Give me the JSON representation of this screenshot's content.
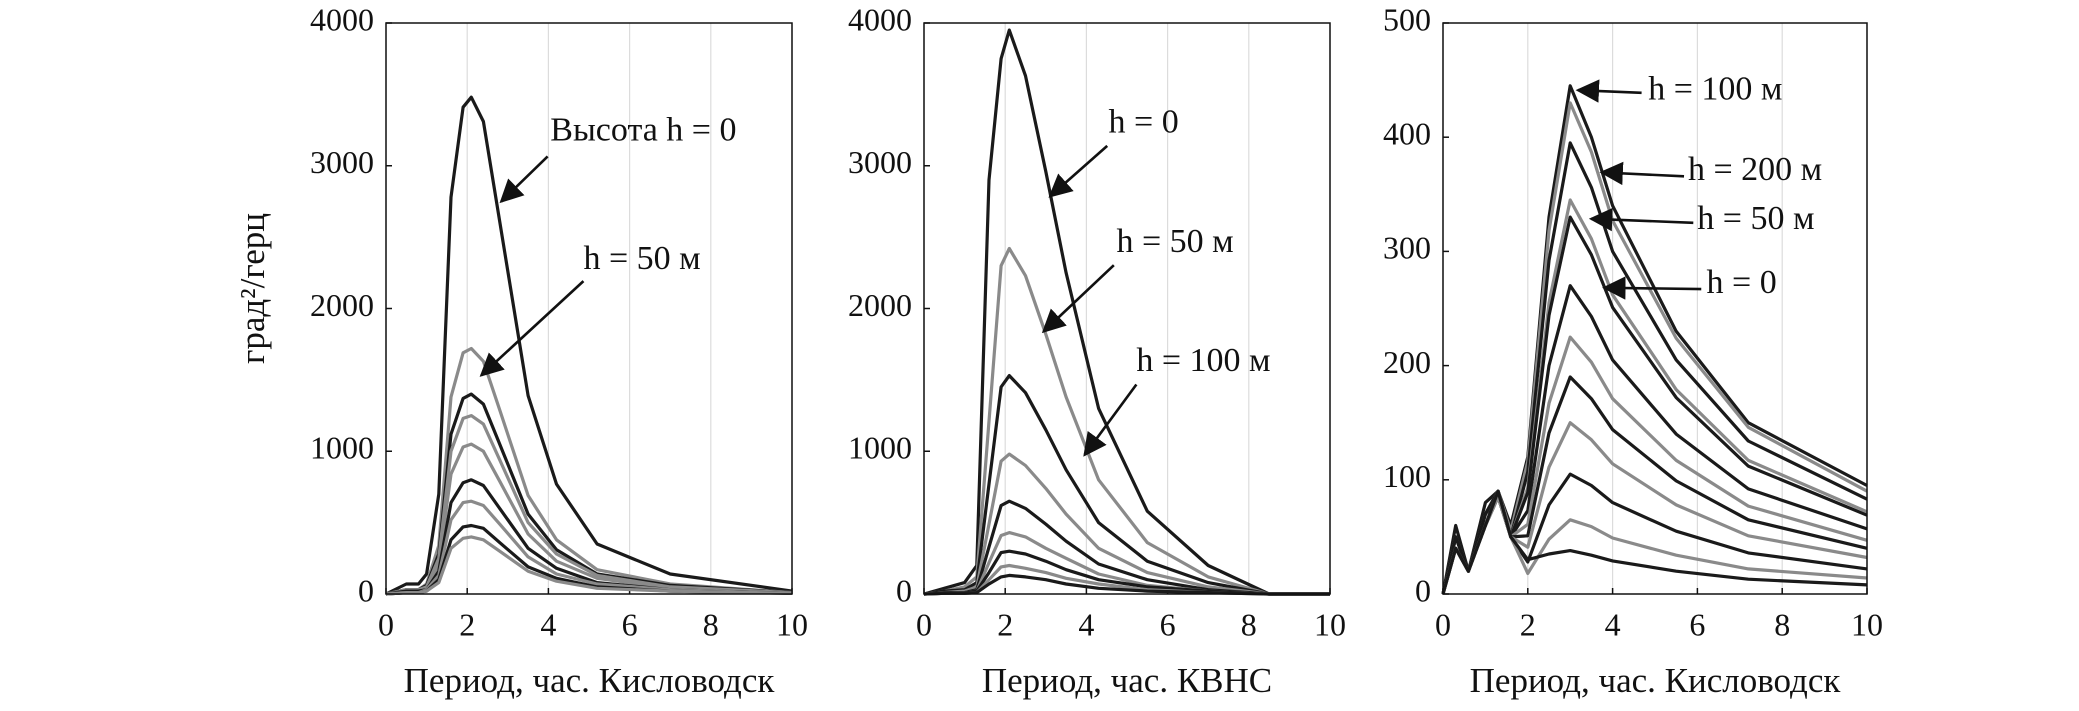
{
  "chart_data": [
    {
      "type": "line",
      "ylabel": "град²/герц",
      "xlabel": "Период, час. Кисловодск",
      "x": [
        0,
        0.5,
        0.8,
        1,
        1.3,
        1.6,
        1.9,
        2.1,
        2.4,
        2.8,
        3.5,
        4.2,
        5.2,
        7,
        10
      ],
      "xlim": [
        0,
        10
      ],
      "xticks": [
        0,
        2,
        4,
        6,
        8,
        10
      ],
      "ylim": [
        0,
        4000
      ],
      "yticks": [
        0,
        1000,
        2000,
        3000,
        4000
      ],
      "grid": "x",
      "annotations": [
        "Высота h = 0",
        "h = 50 м"
      ],
      "series": [
        {
          "color": "#1a1a1a",
          "values": [
            0,
            70,
            70,
            140,
            700,
            2780,
            3410,
            3480,
            3310,
            2610,
            1390,
            770,
            350,
            140,
            20
          ]
        },
        {
          "color": "#8a8a8a",
          "values": [
            0,
            30,
            30,
            70,
            340,
            1380,
            1690,
            1720,
            1630,
            1290,
            690,
            380,
            170,
            70,
            10
          ]
        },
        {
          "color": "#1a1a1a",
          "values": [
            0,
            30,
            30,
            60,
            280,
            1120,
            1370,
            1400,
            1330,
            1050,
            560,
            310,
            140,
            60,
            10
          ]
        },
        {
          "color": "#8a8a8a",
          "values": [
            0,
            30,
            30,
            50,
            250,
            1000,
            1230,
            1250,
            1190,
            940,
            500,
            280,
            130,
            50,
            10
          ]
        },
        {
          "color": "#8a8a8a",
          "values": [
            0,
            20,
            20,
            40,
            210,
            840,
            1030,
            1050,
            1000,
            790,
            420,
            230,
            110,
            40,
            5
          ]
        },
        {
          "color": "#1a1a1a",
          "values": [
            0,
            20,
            20,
            30,
            160,
            640,
            780,
            800,
            760,
            600,
            320,
            180,
            80,
            30,
            5
          ]
        },
        {
          "color": "#8a8a8a",
          "values": [
            0,
            10,
            10,
            30,
            130,
            520,
            640,
            650,
            620,
            490,
            260,
            140,
            70,
            30,
            5
          ]
        },
        {
          "color": "#1a1a1a",
          "values": [
            0,
            10,
            10,
            20,
            100,
            380,
            470,
            480,
            460,
            360,
            190,
            110,
            50,
            20,
            5
          ]
        },
        {
          "color": "#8a8a8a",
          "values": [
            0,
            10,
            10,
            20,
            80,
            320,
            390,
            400,
            380,
            300,
            160,
            90,
            40,
            20,
            5
          ]
        }
      ]
    },
    {
      "type": "line",
      "xlabel": "Период, час. КВНС",
      "x": [
        0,
        0.5,
        1,
        1.3,
        1.6,
        1.9,
        2.1,
        2.5,
        3,
        3.5,
        4.3,
        5.5,
        7,
        8.5,
        10
      ],
      "xlim": [
        0,
        10
      ],
      "xticks": [
        0,
        2,
        4,
        6,
        8,
        10
      ],
      "ylim": [
        0,
        4000
      ],
      "yticks": [
        0,
        1000,
        2000,
        3000,
        4000
      ],
      "grid": "x",
      "annotations": [
        "h = 0",
        "h = 50 м",
        "h = 100 м"
      ],
      "series": [
        {
          "color": "#1a1a1a",
          "values": [
            0,
            40,
            80,
            200,
            2900,
            3750,
            3950,
            3630,
            2960,
            2250,
            1300,
            580,
            200,
            0,
            0
          ]
        },
        {
          "color": "#8a8a8a",
          "values": [
            0,
            20,
            50,
            120,
            1210,
            2300,
            2420,
            2230,
            1820,
            1380,
            800,
            360,
            120,
            0,
            0
          ]
        },
        {
          "color": "#1a1a1a",
          "values": [
            0,
            20,
            30,
            80,
            770,
            1450,
            1530,
            1410,
            1150,
            870,
            500,
            230,
            80,
            0,
            0
          ]
        },
        {
          "color": "#8a8a8a",
          "values": [
            0,
            10,
            20,
            50,
            490,
            930,
            980,
            900,
            740,
            560,
            320,
            150,
            50,
            0,
            0
          ]
        },
        {
          "color": "#1a1a1a",
          "values": [
            0,
            10,
            10,
            30,
            330,
            620,
            650,
            600,
            490,
            370,
            210,
            100,
            30,
            0,
            0
          ]
        },
        {
          "color": "#8a8a8a",
          "values": [
            0,
            5,
            10,
            20,
            220,
            410,
            430,
            400,
            320,
            250,
            140,
            60,
            20,
            0,
            0
          ]
        },
        {
          "color": "#1a1a1a",
          "values": [
            0,
            5,
            10,
            20,
            150,
            290,
            300,
            280,
            230,
            170,
            100,
            50,
            20,
            0,
            0
          ]
        },
        {
          "color": "#8a8a8a",
          "values": [
            0,
            5,
            5,
            10,
            100,
            190,
            200,
            180,
            150,
            110,
            70,
            30,
            10,
            0,
            0
          ]
        },
        {
          "color": "#1a1a1a",
          "values": [
            0,
            5,
            5,
            10,
            70,
            120,
            130,
            120,
            100,
            70,
            40,
            20,
            10,
            0,
            0
          ]
        }
      ]
    },
    {
      "type": "line",
      "xlabel": "Период, час. Кисловодск",
      "x": [
        0,
        0.3,
        0.6,
        1,
        1.3,
        1.6,
        2,
        2.5,
        3,
        3.5,
        4,
        5.5,
        7.2,
        10
      ],
      "xlim": [
        0,
        10
      ],
      "xticks": [
        0,
        2,
        4,
        6,
        8,
        10
      ],
      "ylim": [
        0,
        500
      ],
      "yticks": [
        0,
        100,
        200,
        300,
        400,
        500
      ],
      "grid": "x",
      "annotations": [
        "h = 100 м",
        "h = 200 м",
        "h = 50 м",
        "h = 0"
      ],
      "series": [
        {
          "color": "#1a1a1a",
          "values": [
            0,
            60,
            20,
            80,
            90,
            60,
            120,
            330,
            445,
            400,
            340,
            230,
            150,
            95
          ]
        },
        {
          "color": "#8a8a8a",
          "values": [
            0,
            50,
            20,
            70,
            90,
            55,
            116,
            318,
            430,
            387,
            327,
            224,
            146,
            90
          ]
        },
        {
          "color": "#1a1a1a",
          "values": [
            0,
            50,
            20,
            70,
            90,
            50,
            107,
            292,
            395,
            356,
            300,
            205,
            134,
            83
          ]
        },
        {
          "color": "#8a8a8a",
          "values": [
            0,
            50,
            20,
            70,
            90,
            50,
            93,
            255,
            345,
            311,
            262,
            179,
            117,
            72
          ]
        },
        {
          "color": "#1a1a1a",
          "values": [
            0,
            50,
            20,
            70,
            90,
            50,
            89,
            244,
            330,
            297,
            251,
            172,
            112,
            69
          ]
        },
        {
          "color": "#1a1a1a",
          "values": [
            0,
            50,
            20,
            70,
            85,
            50,
            73,
            200,
            270,
            243,
            205,
            140,
            92,
            57
          ]
        },
        {
          "color": "#8a8a8a",
          "values": [
            0,
            40,
            20,
            60,
            85,
            50,
            61,
            167,
            225,
            203,
            171,
            117,
            77,
            47
          ]
        },
        {
          "color": "#1a1a1a",
          "values": [
            0,
            40,
            20,
            60,
            85,
            50,
            51,
            141,
            190,
            171,
            144,
            99,
            65,
            40
          ]
        },
        {
          "color": "#8a8a8a",
          "values": [
            0,
            40,
            20,
            60,
            85,
            50,
            41,
            111,
            150,
            135,
            114,
            78,
            51,
            32
          ]
        },
        {
          "color": "#1a1a1a",
          "values": [
            0,
            40,
            20,
            60,
            90,
            50,
            28,
            78,
            105,
            95,
            80,
            55,
            36,
            22
          ]
        },
        {
          "color": "#8a8a8a",
          "values": [
            0,
            40,
            20,
            60,
            90,
            50,
            18,
            48,
            65,
            59,
            49,
            34,
            22,
            14
          ]
        },
        {
          "color": "#1a1a1a",
          "values": [
            0,
            40,
            20,
            60,
            90,
            50,
            30,
            35,
            38,
            34,
            29,
            20,
            13,
            8
          ]
        }
      ]
    }
  ]
}
